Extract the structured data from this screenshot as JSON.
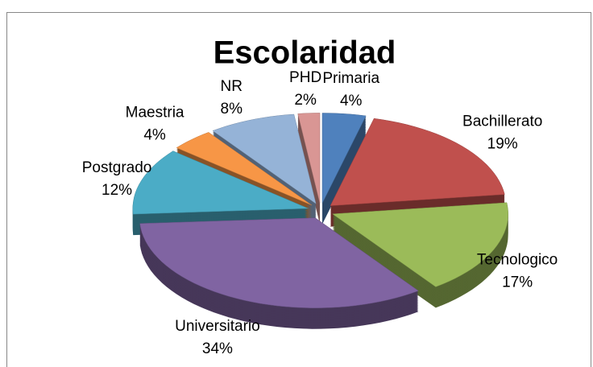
{
  "chart_data": {
    "type": "pie",
    "title": "Escolaridad",
    "categories": [
      "Primaria",
      "Bachillerato",
      "Tecnologico",
      "Universitario",
      "Postgrado",
      "Maestria",
      "NR",
      "PHD"
    ],
    "values": [
      4,
      19,
      17,
      34,
      12,
      4,
      8,
      2
    ],
    "value_labels": [
      "4%",
      "19%",
      "17%",
      "34%",
      "12%",
      "4%",
      "8%",
      "2%"
    ],
    "colors": [
      "#4f81bd",
      "#c0504d",
      "#9bbb59",
      "#8064a2",
      "#4bacc6",
      "#f79646",
      "#95b3d7",
      "#d99694"
    ]
  }
}
